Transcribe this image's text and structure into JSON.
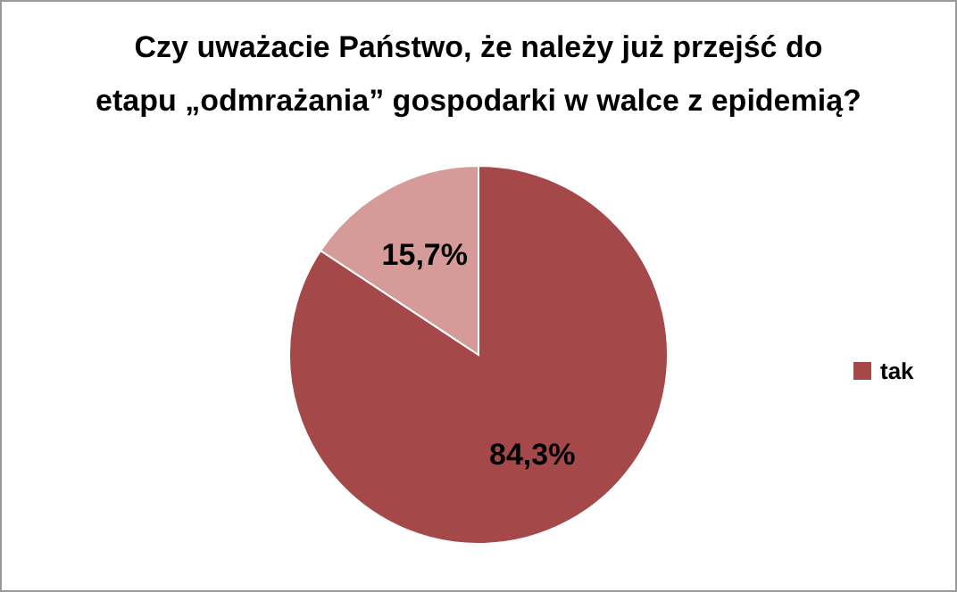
{
  "chart_data": {
    "type": "pie",
    "title": "Czy uważacie Państwo, że należy już przejść do etapu „odmrażania” gospodarki w walce z epidemią?",
    "categories": [
      "tak",
      null
    ],
    "values": [
      84.3,
      15.7
    ],
    "colors": [
      "#a5484a",
      "#d69a99"
    ],
    "value_labels": [
      "84,3%",
      "15,7%"
    ],
    "legend": "right"
  }
}
